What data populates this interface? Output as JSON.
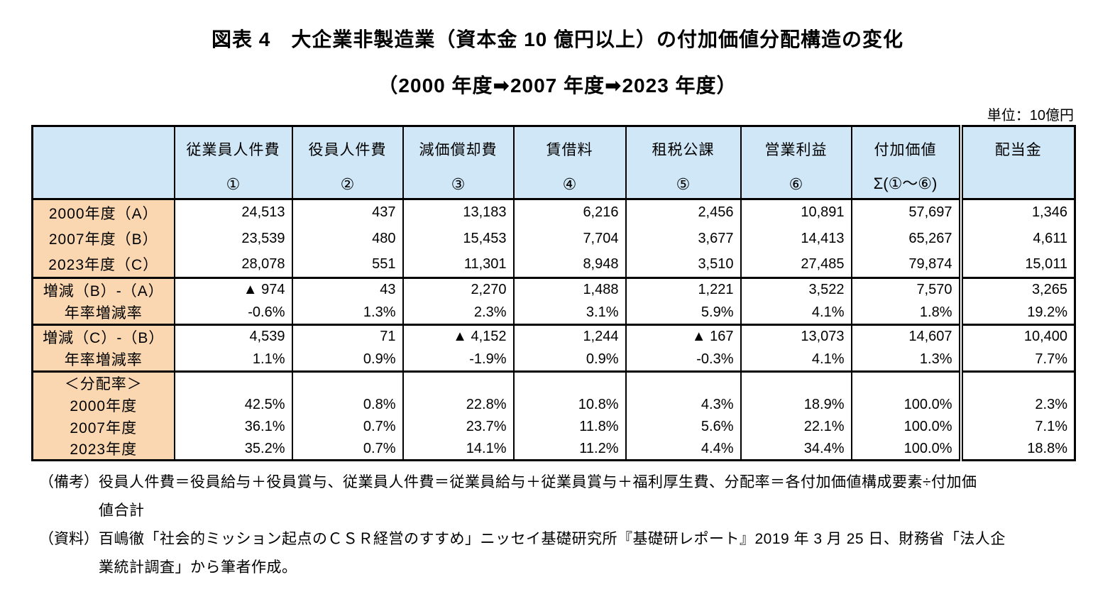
{
  "title": "図表 4　大企業非製造業（資本金 10 億円以上）の付加価値分配構造の変化",
  "subtitle": "（2000 年度➡2007 年度➡2023 年度）",
  "unit_label": "単位：10億円",
  "colors": {
    "header_bg": "#cfe7f6",
    "row_label_bg": "#fad7b0",
    "border": "#000000",
    "text": "#000000"
  },
  "table": {
    "columns": [
      {
        "label": "従業員人件費",
        "sub": "①"
      },
      {
        "label": "役員人件費",
        "sub": "②"
      },
      {
        "label": "減価償却費",
        "sub": "③"
      },
      {
        "label": "賃借料",
        "sub": "④"
      },
      {
        "label": "租税公課",
        "sub": "⑤"
      },
      {
        "label": "営業利益",
        "sub": "⑥"
      },
      {
        "label": "付加価値",
        "sub": "Σ(①～⑥)"
      },
      {
        "label": "配当金",
        "sub": ""
      }
    ],
    "blocks": [
      {
        "rows": [
          {
            "label": "2000年度（A）",
            "values": [
              "24,513",
              "437",
              "13,183",
              "6,216",
              "2,456",
              "10,891",
              "57,697",
              "1,346"
            ]
          },
          {
            "label": "2007年度（B）",
            "values": [
              "23,539",
              "480",
              "15,453",
              "7,704",
              "3,677",
              "14,413",
              "65,267",
              "4,611"
            ]
          },
          {
            "label": "2023年度（C）",
            "values": [
              "28,078",
              "551",
              "11,301",
              "8,948",
              "3,510",
              "27,485",
              "79,874",
              "15,011"
            ]
          }
        ]
      },
      {
        "rows": [
          {
            "label": "増減（B）-（A）",
            "values": [
              "▲ 974",
              "43",
              "2,270",
              "1,488",
              "1,221",
              "3,522",
              "7,570",
              "3,265"
            ]
          },
          {
            "label": "年率増減率",
            "values": [
              "-0.6%",
              "1.3%",
              "2.3%",
              "3.1%",
              "5.9%",
              "4.1%",
              "1.8%",
              "19.2%"
            ]
          }
        ]
      },
      {
        "rows": [
          {
            "label": "増減（C）-（B）",
            "values": [
              "4,539",
              "71",
              "▲ 4,152",
              "1,244",
              "▲ 167",
              "13,073",
              "14,607",
              "10,400"
            ]
          },
          {
            "label": "年率増減率",
            "values": [
              "1.1%",
              "0.9%",
              "-1.9%",
              "0.9%",
              "-0.3%",
              "4.1%",
              "1.3%",
              "7.7%"
            ]
          }
        ]
      },
      {
        "rows": [
          {
            "label": "＜分配率＞",
            "values": [
              "",
              "",
              "",
              "",
              "",
              "",
              "",
              ""
            ]
          },
          {
            "label": "2000年度",
            "values": [
              "42.5%",
              "0.8%",
              "22.8%",
              "10.8%",
              "4.3%",
              "18.9%",
              "100.0%",
              "2.3%"
            ]
          },
          {
            "label": "2007年度",
            "values": [
              "36.1%",
              "0.7%",
              "23.7%",
              "11.8%",
              "5.6%",
              "22.1%",
              "100.0%",
              "7.1%"
            ]
          },
          {
            "label": "2023年度",
            "values": [
              "35.2%",
              "0.7%",
              "14.1%",
              "11.2%",
              "4.4%",
              "34.4%",
              "100.0%",
              "18.8%"
            ]
          }
        ]
      }
    ]
  },
  "notes": [
    {
      "prefix": "（備考）",
      "lines": [
        "役員人件費＝役員給与＋役員賞与、従業員人件費＝従業員給与＋従業員賞与＋福利厚生費、分配率＝各付加価値構成要素÷付加価",
        "値合計"
      ]
    },
    {
      "prefix": "（資料）",
      "lines": [
        "百嶋徹「社会的ミッション起点のＣＳＲ経営のすすめ」ニッセイ基礎研究所『基礎研レポート』2019 年 3 月 25 日、財務省「法人企",
        "業統計調査」から筆者作成。"
      ]
    }
  ]
}
